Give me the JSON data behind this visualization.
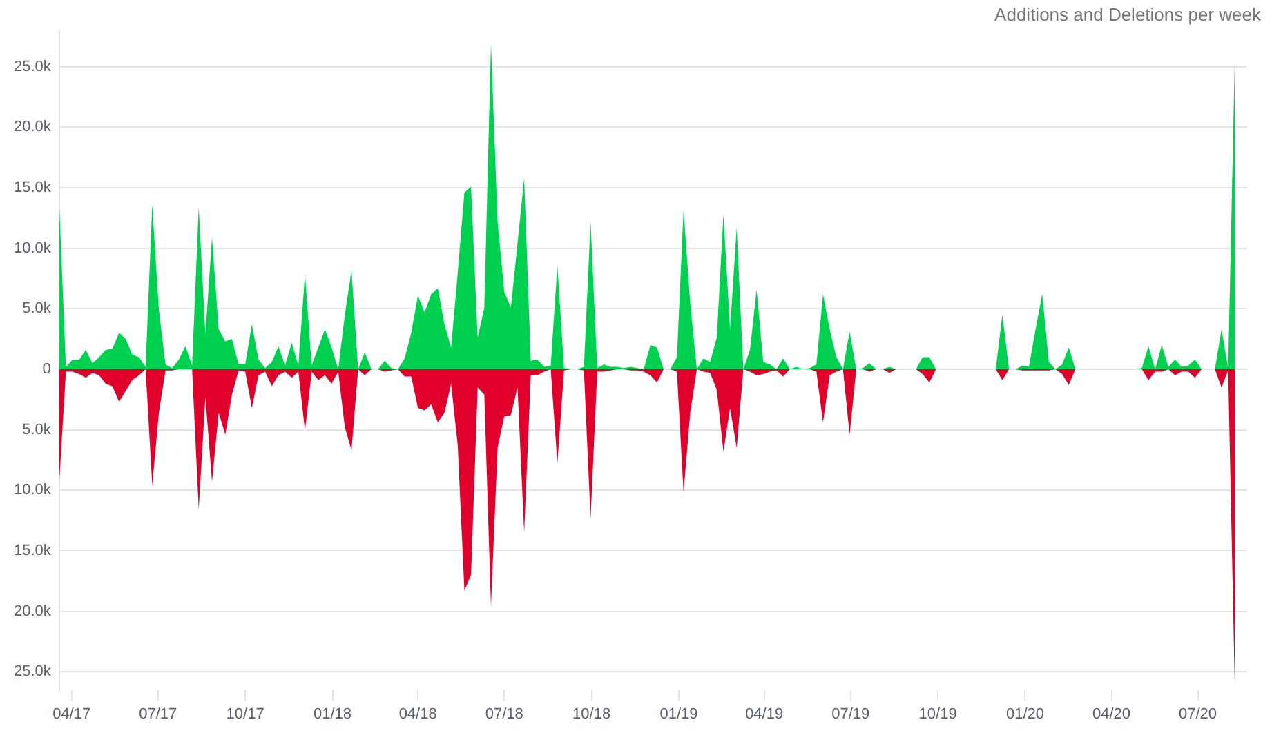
{
  "chart_data": {
    "type": "area",
    "title": "Additions and Deletions per week",
    "grid": "y",
    "x": [
      "2017-03-19",
      "2017-03-26",
      "2017-04-02",
      "2017-04-09",
      "2017-04-16",
      "2017-04-23",
      "2017-04-30",
      "2017-05-07",
      "2017-05-14",
      "2017-05-21",
      "2017-05-28",
      "2017-06-04",
      "2017-06-11",
      "2017-06-18",
      "2017-06-25",
      "2017-07-02",
      "2017-07-09",
      "2017-07-16",
      "2017-07-23",
      "2017-07-30",
      "2017-08-06",
      "2017-08-13",
      "2017-08-20",
      "2017-08-27",
      "2017-09-03",
      "2017-09-10",
      "2017-09-17",
      "2017-09-24",
      "2017-10-01",
      "2017-10-08",
      "2017-10-15",
      "2017-10-22",
      "2017-10-29",
      "2017-11-05",
      "2017-11-12",
      "2017-11-19",
      "2017-11-26",
      "2017-12-03",
      "2017-12-10",
      "2017-12-17",
      "2017-12-24",
      "2017-12-31",
      "2018-01-07",
      "2018-01-14",
      "2018-01-21",
      "2018-01-28",
      "2018-02-04",
      "2018-02-11",
      "2018-02-18",
      "2018-02-25",
      "2018-03-04",
      "2018-03-11",
      "2018-03-18",
      "2018-03-25",
      "2018-04-01",
      "2018-04-08",
      "2018-04-15",
      "2018-04-22",
      "2018-04-29",
      "2018-05-06",
      "2018-05-13",
      "2018-05-20",
      "2018-05-27",
      "2018-06-03",
      "2018-06-10",
      "2018-06-17",
      "2018-06-24",
      "2018-07-01",
      "2018-07-08",
      "2018-07-15",
      "2018-07-22",
      "2018-07-29",
      "2018-08-05",
      "2018-08-12",
      "2018-08-19",
      "2018-08-26",
      "2018-09-02",
      "2018-09-09",
      "2018-09-16",
      "2018-09-23",
      "2018-09-30",
      "2018-10-07",
      "2018-10-14",
      "2018-10-21",
      "2018-10-28",
      "2018-11-04",
      "2018-11-11",
      "2018-11-18",
      "2018-11-25",
      "2018-12-02",
      "2018-12-09",
      "2018-12-16",
      "2018-12-23",
      "2018-12-30",
      "2019-01-06",
      "2019-01-13",
      "2019-01-20",
      "2019-01-27",
      "2019-02-03",
      "2019-02-10",
      "2019-02-17",
      "2019-02-24",
      "2019-03-03",
      "2019-03-10",
      "2019-03-17",
      "2019-03-24",
      "2019-03-31",
      "2019-04-07",
      "2019-04-14",
      "2019-04-21",
      "2019-04-28",
      "2019-05-05",
      "2019-05-12",
      "2019-05-19",
      "2019-05-26",
      "2019-06-02",
      "2019-06-09",
      "2019-06-16",
      "2019-06-23",
      "2019-06-30",
      "2019-07-07",
      "2019-07-14",
      "2019-07-21",
      "2019-07-28",
      "2019-08-04",
      "2019-08-11",
      "2019-08-18",
      "2019-08-25",
      "2019-09-01",
      "2019-09-08",
      "2019-09-15",
      "2019-09-22",
      "2019-09-29",
      "2019-10-06",
      "2019-10-13",
      "2019-10-20",
      "2019-10-27",
      "2019-11-03",
      "2019-11-10",
      "2019-11-17",
      "2019-11-24",
      "2019-12-01",
      "2019-12-08",
      "2019-12-15",
      "2019-12-22",
      "2019-12-29",
      "2020-01-05",
      "2020-01-12",
      "2020-01-19",
      "2020-01-26",
      "2020-02-02",
      "2020-02-09",
      "2020-02-16",
      "2020-02-23",
      "2020-03-01",
      "2020-03-08",
      "2020-03-15",
      "2020-03-22",
      "2020-03-29",
      "2020-04-05",
      "2020-04-12",
      "2020-04-19",
      "2020-04-26",
      "2020-05-03",
      "2020-05-10",
      "2020-05-17",
      "2020-05-24",
      "2020-05-31",
      "2020-06-07",
      "2020-06-14",
      "2020-06-21",
      "2020-06-28",
      "2020-07-05",
      "2020-07-12",
      "2020-07-19",
      "2020-07-26",
      "2020-08-02",
      "2020-08-09"
    ],
    "series": [
      {
        "color": "#00d04f",
        "values": [
          13600,
          200,
          800,
          800,
          1600,
          500,
          1000,
          1600,
          1700,
          3000,
          2500,
          1200,
          1000,
          200,
          13600,
          4900,
          400,
          100,
          800,
          1900,
          300,
          13400,
          2900,
          10900,
          3300,
          2300,
          2500,
          400,
          400,
          3700,
          800,
          100,
          600,
          1900,
          300,
          2200,
          300,
          7900,
          300,
          1800,
          3300,
          1800,
          0,
          4500,
          8200,
          0,
          1400,
          0,
          0,
          700,
          100,
          0,
          900,
          3000,
          6100,
          4700,
          6200,
          6700,
          3700,
          1800,
          8000,
          14600,
          15100,
          2600,
          5100,
          26900,
          12200,
          6400,
          5100,
          10400,
          15800,
          700,
          800,
          200,
          300,
          8600,
          100,
          0,
          0,
          200,
          12200,
          100,
          400,
          200,
          200,
          100,
          200,
          100,
          0,
          2000,
          1800,
          0,
          0,
          1000,
          13200,
          5500,
          0,
          900,
          600,
          2600,
          12800,
          3300,
          11700,
          0,
          1600,
          6600,
          600,
          400,
          0,
          900,
          0,
          200,
          0,
          100,
          400,
          6200,
          3300,
          1000,
          0,
          3100,
          0,
          100,
          500,
          0,
          0,
          200,
          0,
          0,
          0,
          0,
          1000,
          1000,
          0,
          0,
          0,
          0,
          0,
          0,
          0,
          0,
          0,
          0,
          4500,
          0,
          0,
          300,
          200,
          3300,
          6200,
          600,
          0,
          400,
          1800,
          0,
          0,
          0,
          0,
          0,
          0,
          0,
          0,
          0,
          0,
          100,
          1900,
          0,
          2000,
          200,
          800,
          200,
          300,
          800,
          0,
          0,
          0,
          3300,
          100,
          25800
        ]
      },
      {
        "color": "#e0002b",
        "values": [
          -9300,
          -200,
          -200,
          -400,
          -700,
          -300,
          -500,
          -1200,
          -1400,
          -2700,
          -1800,
          -900,
          -500,
          0,
          -9600,
          -3600,
          -100,
          -100,
          0,
          0,
          0,
          -11600,
          -2300,
          -9300,
          -3600,
          -5400,
          -2100,
          -100,
          -200,
          -3200,
          -500,
          -200,
          -1400,
          -500,
          -200,
          -700,
          -200,
          -5100,
          -200,
          -900,
          -500,
          -1200,
          -200,
          -4800,
          -6700,
          0,
          -500,
          0,
          0,
          -200,
          -100,
          0,
          -600,
          -600,
          -3200,
          -3400,
          -2900,
          -4400,
          -3600,
          -1200,
          -6300,
          -18300,
          -17000,
          -1500,
          -2100,
          -19600,
          -6500,
          -3900,
          -3800,
          -1500,
          -13500,
          -500,
          -500,
          -200,
          0,
          -7800,
          -100,
          0,
          0,
          -100,
          -12400,
          -200,
          -200,
          -100,
          0,
          0,
          -100,
          -100,
          -200,
          -500,
          -1100,
          0,
          0,
          -200,
          -10200,
          -3600,
          0,
          -200,
          -300,
          -1700,
          -6800,
          -3200,
          -6500,
          0,
          -200,
          -500,
          -400,
          -200,
          -100,
          -600,
          0,
          0,
          0,
          0,
          -200,
          -4400,
          -500,
          -200,
          0,
          -5400,
          0,
          0,
          -200,
          0,
          0,
          -300,
          0,
          0,
          0,
          0,
          -400,
          -1100,
          0,
          0,
          0,
          0,
          0,
          0,
          0,
          0,
          0,
          0,
          -900,
          0,
          0,
          -100,
          -100,
          -100,
          -100,
          -100,
          0,
          -400,
          -1300,
          0,
          0,
          0,
          0,
          0,
          0,
          0,
          0,
          0,
          0,
          0,
          -900,
          -200,
          -200,
          0,
          -500,
          -200,
          -200,
          -700,
          0,
          0,
          0,
          -1500,
          -100,
          -26300
        ]
      }
    ],
    "xlim": [
      "2017-03-19",
      "2020-08-22"
    ],
    "xticks": [
      {
        "value": "2017-04-01",
        "label": "04/17"
      },
      {
        "value": "2017-07-01",
        "label": "07/17"
      },
      {
        "value": "2017-10-01",
        "label": "10/17"
      },
      {
        "value": "2018-01-01",
        "label": "01/18"
      },
      {
        "value": "2018-04-01",
        "label": "04/18"
      },
      {
        "value": "2018-07-01",
        "label": "07/18"
      },
      {
        "value": "2018-10-01",
        "label": "10/18"
      },
      {
        "value": "2019-01-01",
        "label": "01/19"
      },
      {
        "value": "2019-04-01",
        "label": "04/19"
      },
      {
        "value": "2019-07-01",
        "label": "07/19"
      },
      {
        "value": "2019-10-01",
        "label": "10/19"
      },
      {
        "value": "2020-01-01",
        "label": "01/20"
      },
      {
        "value": "2020-04-01",
        "label": "04/20"
      },
      {
        "value": "2020-07-01",
        "label": "07/20"
      }
    ],
    "ylim": [
      -26500,
      28000
    ],
    "yticks": [
      {
        "value": -25000,
        "label": "25.0k"
      },
      {
        "value": -20000,
        "label": "20.0k"
      },
      {
        "value": -15000,
        "label": "15.0k"
      },
      {
        "value": -10000,
        "label": "10.0k"
      },
      {
        "value": -5000,
        "label": "5.0k"
      },
      0,
      {
        "value": 5000,
        "label": "5.0k"
      },
      {
        "value": 10000,
        "label": "10.0k"
      },
      {
        "value": 15000,
        "label": "15.0k"
      },
      {
        "value": 20000,
        "label": "20.0k"
      },
      {
        "value": 25000,
        "label": "25.0k"
      }
    ]
  }
}
